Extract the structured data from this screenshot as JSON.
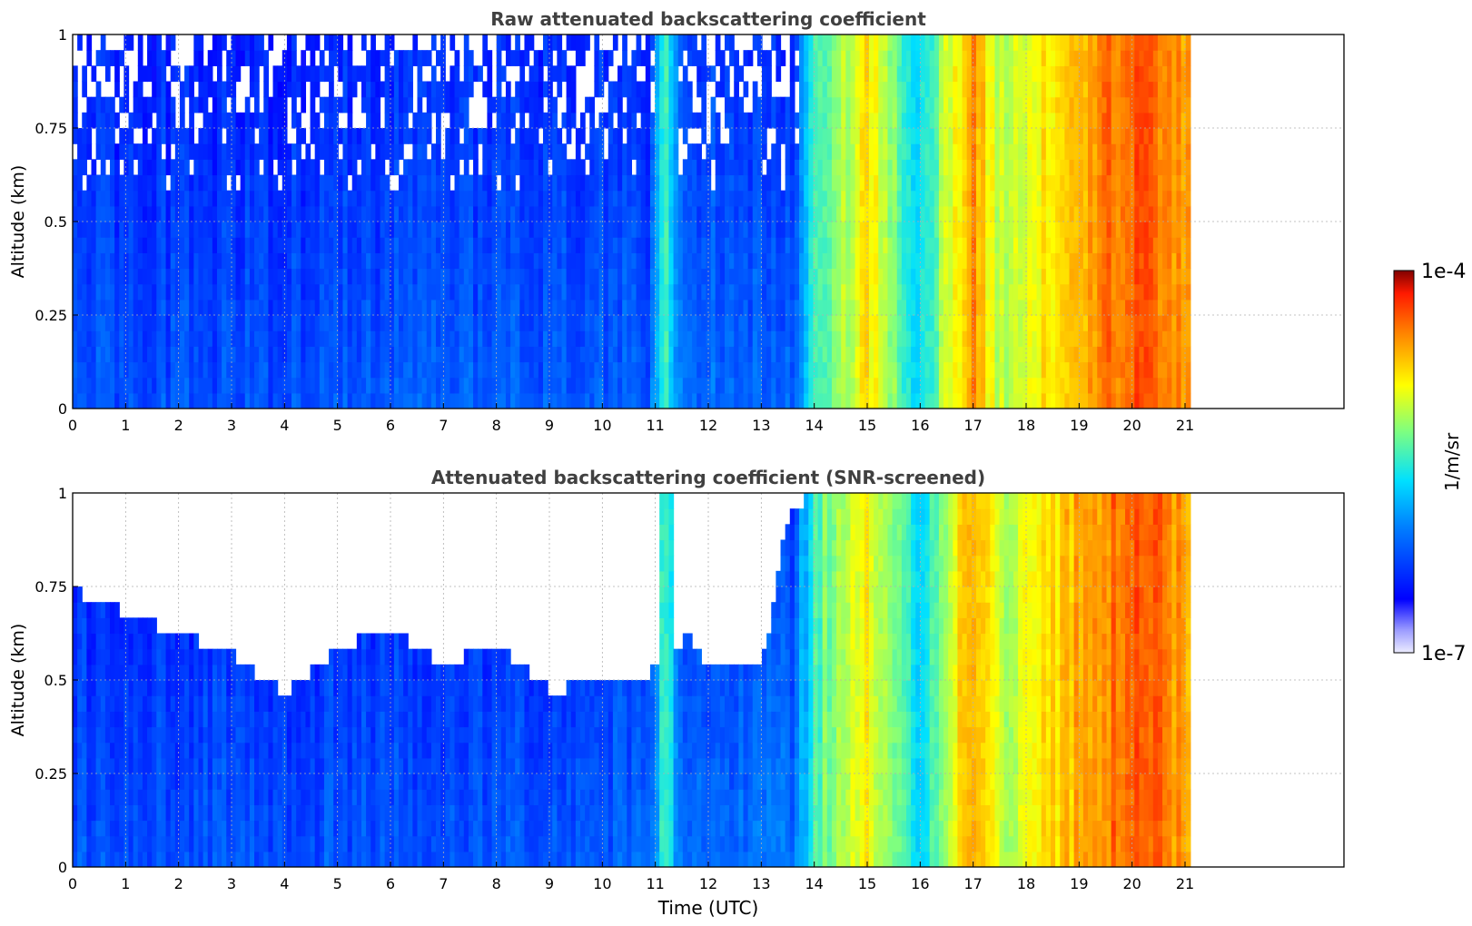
{
  "chart_data": [
    {
      "type": "heatmap",
      "title": "Raw attenuated backscattering coefficient",
      "xlabel": "",
      "ylabel": "Altitude (km)",
      "xlim": [
        0,
        24
      ],
      "ylim": [
        0,
        1
      ],
      "x_ticks": [
        "0",
        "1",
        "2",
        "3",
        "4",
        "5",
        "6",
        "7",
        "8",
        "9",
        "10",
        "11",
        "12",
        "13",
        "14",
        "15",
        "16",
        "17",
        "18",
        "19",
        "20",
        "21"
      ],
      "y_ticks": [
        "0",
        "0.25",
        "0.5",
        "0.75",
        "1"
      ],
      "grid": true,
      "data_extent_hours": [
        0,
        21.1
      ],
      "time_profile": [
        {
          "t": 0,
          "level": 0.22
        },
        {
          "t": 4,
          "level": 0.22
        },
        {
          "t": 10.9,
          "level": 0.24
        },
        {
          "t": 11.2,
          "level": 0.55
        },
        {
          "t": 11.5,
          "level": 0.26
        },
        {
          "t": 13.6,
          "level": 0.26
        },
        {
          "t": 14.0,
          "level": 0.52
        },
        {
          "t": 15.0,
          "level": 0.72
        },
        {
          "t": 16.0,
          "level": 0.45
        },
        {
          "t": 17.0,
          "level": 0.82
        },
        {
          "t": 17.5,
          "level": 0.62
        },
        {
          "t": 18.3,
          "level": 0.72
        },
        {
          "t": 19.3,
          "level": 0.82
        },
        {
          "t": 20.2,
          "level": 0.9
        },
        {
          "t": 21.1,
          "level": 0.78
        }
      ]
    },
    {
      "type": "heatmap",
      "title": "Attenuated backscattering coefficient (SNR-screened)",
      "xlabel": "Time (UTC)",
      "ylabel": "Altitude (km)",
      "xlim": [
        0,
        24
      ],
      "ylim": [
        0,
        1
      ],
      "x_ticks": [
        "0",
        "1",
        "2",
        "3",
        "4",
        "5",
        "6",
        "7",
        "8",
        "9",
        "10",
        "11",
        "12",
        "13",
        "14",
        "15",
        "16",
        "17",
        "18",
        "19",
        "20",
        "21"
      ],
      "y_ticks": [
        "0",
        "0.25",
        "0.5",
        "0.75",
        "1"
      ],
      "grid": true,
      "data_extent_hours": [
        0,
        21.1
      ],
      "screening_top_km": [
        {
          "t": 0,
          "alt": 0.72
        },
        {
          "t": 1,
          "alt": 0.66
        },
        {
          "t": 2,
          "alt": 0.6
        },
        {
          "t": 3,
          "alt": 0.55
        },
        {
          "t": 4,
          "alt": 0.44
        },
        {
          "t": 5,
          "alt": 0.56
        },
        {
          "t": 6,
          "alt": 0.62
        },
        {
          "t": 7,
          "alt": 0.52
        },
        {
          "t": 8,
          "alt": 0.58
        },
        {
          "t": 9,
          "alt": 0.45
        },
        {
          "t": 10,
          "alt": 0.48
        },
        {
          "t": 10.9,
          "alt": 0.5
        },
        {
          "t": 11.6,
          "alt": 0.6
        },
        {
          "t": 12,
          "alt": 0.5
        },
        {
          "t": 13,
          "alt": 0.5
        },
        {
          "t": 13.5,
          "alt": 0.92
        }
      ]
    }
  ],
  "colorbar": {
    "label": "1/m/sr",
    "max_label": "1e-4",
    "min_label": "1e-7",
    "colormap": "jet",
    "scale": "log"
  }
}
